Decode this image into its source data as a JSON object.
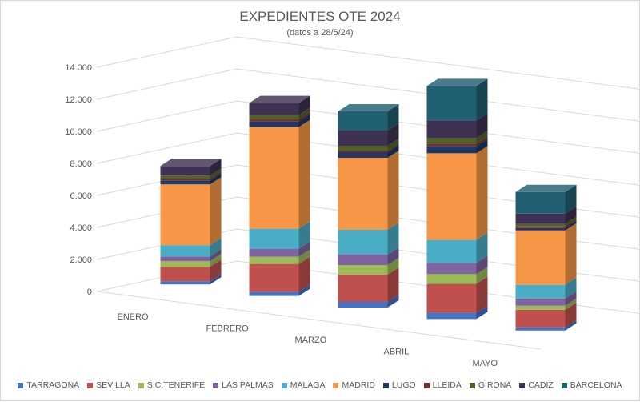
{
  "chart_data": {
    "type": "bar",
    "stacked": true,
    "three_d": true,
    "title": "EXPEDIENTES OTE 2024",
    "subtitle": "(datos a 28/5/24)",
    "categories": [
      "ENERO",
      "FEBRERO",
      "MARZO",
      "ABRIL",
      "MAYO"
    ],
    "ylim": [
      0,
      14000
    ],
    "yticks": [
      "0",
      "2.000",
      "4.000",
      "6.000",
      "8.000",
      "10.000",
      "12.000",
      "14.000"
    ],
    "ytick_values": [
      0,
      2000,
      4000,
      6000,
      8000,
      10000,
      12000,
      14000
    ],
    "grid": true,
    "legend_position": "bottom",
    "series": [
      {
        "name": "TARRAGONA",
        "color": "#4472c4",
        "values": [
          200,
          250,
          350,
          400,
          200
        ]
      },
      {
        "name": "SEVILLA",
        "color": "#c0504d",
        "values": [
          900,
          1750,
          1700,
          1800,
          1100
        ]
      },
      {
        "name": "S.C.TENERIFE",
        "color": "#9bbb59",
        "values": [
          350,
          450,
          600,
          600,
          250
        ]
      },
      {
        "name": "LAS PALMAS",
        "color": "#8064a2",
        "values": [
          300,
          500,
          650,
          700,
          450
        ]
      },
      {
        "name": "MALAGA",
        "color": "#4bacc6",
        "values": [
          700,
          1250,
          1550,
          1450,
          850
        ]
      },
      {
        "name": "MADRID",
        "color": "#f79646",
        "values": [
          3800,
          6350,
          4500,
          5400,
          3400
        ]
      },
      {
        "name": "LUGO",
        "color": "#1f3864",
        "values": [
          250,
          350,
          350,
          450,
          150
        ]
      },
      {
        "name": "LLEIDA",
        "color": "#7b2c2c",
        "values": [
          100,
          150,
          100,
          150,
          100
        ]
      },
      {
        "name": "GIRONA",
        "color": "#4f6228",
        "values": [
          200,
          250,
          300,
          350,
          150
        ]
      },
      {
        "name": "CADIZ",
        "color": "#3f3151",
        "values": [
          600,
          750,
          950,
          1100,
          650
        ]
      },
      {
        "name": "BARCELONA",
        "color": "#215f72",
        "values": [
          0,
          0,
          1200,
          2150,
          1350
        ]
      }
    ]
  }
}
